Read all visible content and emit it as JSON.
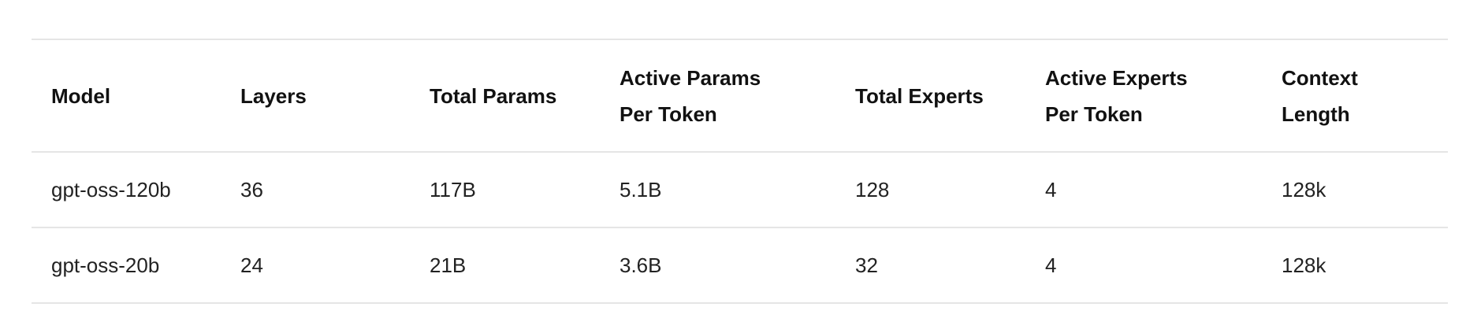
{
  "table": {
    "columns": [
      "Model",
      "Layers",
      "Total Params",
      "Active Params Per Token",
      "Total Experts",
      "Active Experts Per Token",
      "Context Length"
    ],
    "rows": [
      [
        "gpt-oss-120b",
        "36",
        "117B",
        "5.1B",
        "128",
        "4",
        "128k"
      ],
      [
        "gpt-oss-20b",
        "24",
        "21B",
        "3.6B",
        "32",
        "4",
        "128k"
      ]
    ]
  }
}
